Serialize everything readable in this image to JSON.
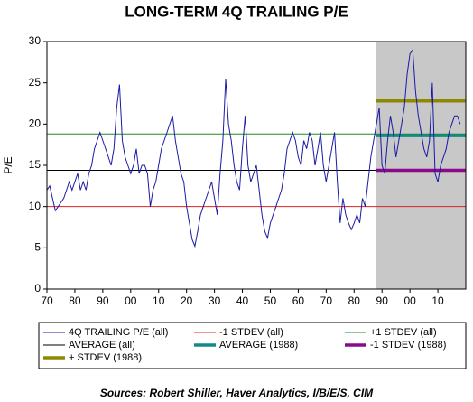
{
  "chart_data": {
    "type": "line",
    "title": "LONG-TERM 4Q TRAILING P/E",
    "y_label": "P/E",
    "source": "Sources:  Robert Shiller, Haver Analytics, I/B/E/S, CIM",
    "xlim": [
      1870,
      2020
    ],
    "ylim": [
      0,
      30
    ],
    "xticks": [
      {
        "value": 1870,
        "label": "70"
      },
      {
        "value": 1880,
        "label": "80"
      },
      {
        "value": 1890,
        "label": "90"
      },
      {
        "value": 1900,
        "label": "00"
      },
      {
        "value": 1910,
        "label": "10"
      },
      {
        "value": 1920,
        "label": "20"
      },
      {
        "value": 1930,
        "label": "30"
      },
      {
        "value": 1940,
        "label": "40"
      },
      {
        "value": 1950,
        "label": "50"
      },
      {
        "value": 1960,
        "label": "60"
      },
      {
        "value": 1970,
        "label": "70"
      },
      {
        "value": 1980,
        "label": "80"
      },
      {
        "value": 1990,
        "label": "90"
      },
      {
        "value": 2000,
        "label": "00"
      },
      {
        "value": 2010,
        "label": "10"
      }
    ],
    "yticks": [
      0,
      5,
      10,
      15,
      20,
      25,
      30
    ],
    "shade_start": 1988,
    "shade_color": "#c8c8c8",
    "x": [
      1870,
      1871,
      1872,
      1873,
      1874,
      1875,
      1876,
      1877,
      1878,
      1879,
      1880,
      1881,
      1882,
      1883,
      1884,
      1885,
      1886,
      1887,
      1888,
      1889,
      1890,
      1891,
      1892,
      1893,
      1894,
      1895,
      1896,
      1897,
      1898,
      1899,
      1900,
      1901,
      1902,
      1903,
      1904,
      1905,
      1906,
      1907,
      1908,
      1909,
      1910,
      1911,
      1912,
      1913,
      1914,
      1915,
      1916,
      1917,
      1918,
      1919,
      1920,
      1921,
      1922,
      1923,
      1924,
      1925,
      1926,
      1927,
      1928,
      1929,
      1930,
      1931,
      1932,
      1933,
      1934,
      1935,
      1936,
      1937,
      1938,
      1939,
      1940,
      1941,
      1942,
      1943,
      1944,
      1945,
      1946,
      1947,
      1948,
      1949,
      1950,
      1951,
      1952,
      1953,
      1954,
      1955,
      1956,
      1957,
      1958,
      1959,
      1960,
      1961,
      1962,
      1963,
      1964,
      1965,
      1966,
      1967,
      1968,
      1969,
      1970,
      1971,
      1972,
      1973,
      1974,
      1975,
      1976,
      1977,
      1978,
      1979,
      1980,
      1981,
      1982,
      1983,
      1984,
      1985,
      1986,
      1987,
      1988,
      1989,
      1990,
      1991,
      1992,
      1993,
      1994,
      1995,
      1996,
      1997,
      1998,
      1999,
      2000,
      2001,
      2002,
      2003,
      2004,
      2005,
      2006,
      2007,
      2008,
      2009,
      2010,
      2011,
      2012,
      2013,
      2014,
      2015,
      2016,
      2017,
      2018
    ],
    "series": [
      {
        "name": "4Q TRAILING P/E (all)",
        "color": "#1a1aa6",
        "values": [
          12,
          12.5,
          11,
          9.5,
          10,
          10.5,
          11,
          12,
          13,
          12,
          13,
          14,
          12,
          13,
          12,
          14,
          15,
          17,
          18,
          19,
          18,
          17,
          16,
          15,
          17,
          22,
          24.8,
          18,
          16,
          15,
          14,
          15,
          17,
          14,
          15,
          15,
          14,
          10,
          12,
          13,
          15,
          17,
          18,
          19,
          20,
          21,
          18,
          16,
          14,
          13,
          10,
          8,
          6,
          5.2,
          7,
          9,
          10,
          11,
          12,
          13,
          11,
          9,
          14,
          18,
          25.5,
          20,
          18,
          15,
          13,
          12,
          17,
          21,
          15,
          13,
          14,
          15,
          12,
          9,
          7,
          6.2,
          8,
          9,
          10,
          11,
          12,
          14,
          17,
          18,
          19,
          18,
          16,
          15,
          18,
          17,
          19,
          18,
          15,
          17,
          19,
          15,
          13,
          15,
          17,
          19,
          13,
          8,
          11,
          9,
          8,
          7.2,
          8,
          9,
          8,
          11,
          10,
          13,
          16,
          18,
          20,
          22,
          15,
          14,
          18,
          21,
          19,
          16,
          18,
          20,
          22,
          26,
          28.5,
          29,
          24,
          21,
          19,
          17,
          16,
          18,
          25,
          14,
          13,
          15,
          16,
          17,
          19,
          20,
          21,
          21,
          20
        ]
      }
    ],
    "reference_lines": [
      {
        "name": "-1 STDEV (all)",
        "color": "#e02020",
        "value": 10
      },
      {
        "name": "+1 STDEV (all)",
        "color": "#208a20",
        "value": 18.8
      },
      {
        "name": "AVERAGE (all)",
        "color": "#000000",
        "value": 14.4
      },
      {
        "name": "AVERAGE (1988)",
        "color": "#138a8a",
        "value": 18.6,
        "start": 1988
      },
      {
        "name": "-1 STDEV (1988)",
        "color": "#8a0a8a",
        "value": 14.4,
        "start": 1988
      },
      {
        "name": "+ STDEV (1988)",
        "color": "#8c8a00",
        "value": 22.8,
        "start": 1988
      }
    ]
  }
}
